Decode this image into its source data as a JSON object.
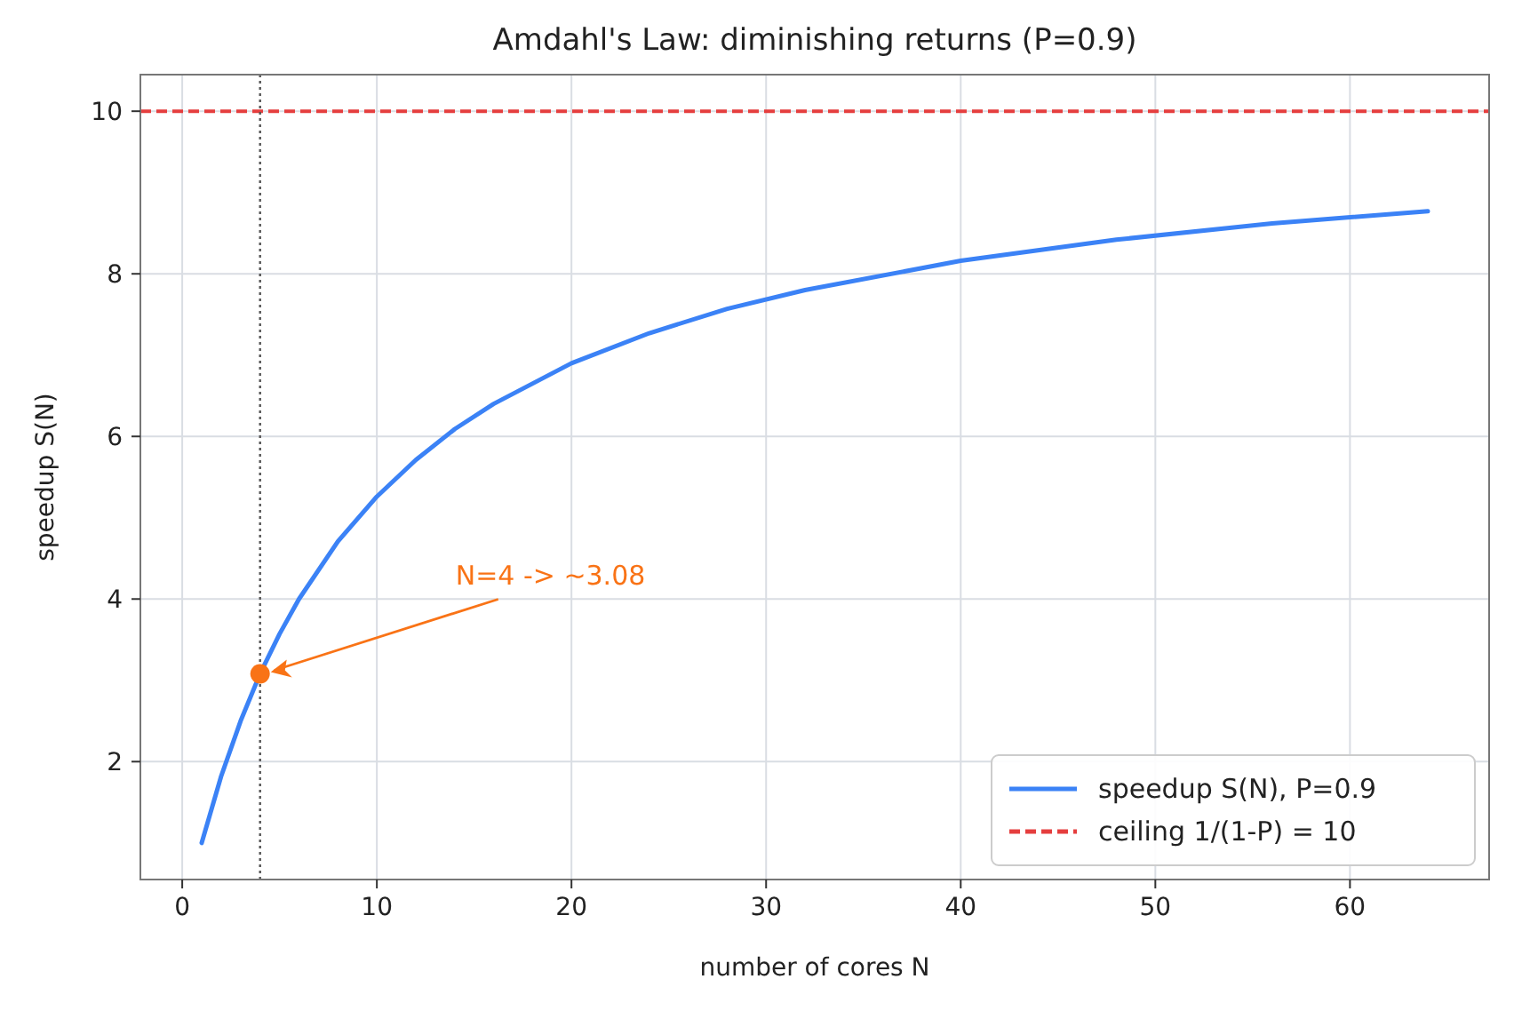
{
  "chart_data": {
    "type": "line",
    "title": "Amdahl's Law: diminishing returns (P=0.9)",
    "xlabel": "number of cores  N",
    "ylabel": "speedup  S(N)",
    "series": [
      {
        "name": "speedup S(N), P=0.9",
        "color": "#3b82f6",
        "x": [
          1,
          2,
          3,
          4,
          5,
          6,
          8,
          10,
          12,
          14,
          16,
          20,
          24,
          28,
          32,
          40,
          48,
          56,
          64
        ],
        "values": [
          1,
          1.82,
          2.5,
          3.08,
          3.57,
          4,
          4.71,
          5.26,
          5.71,
          6.09,
          6.4,
          6.9,
          7.27,
          7.57,
          7.8,
          8.16,
          8.42,
          8.62,
          8.77
        ]
      },
      {
        "type": "scatter",
        "color": "#f97316",
        "x": [
          4
        ],
        "values": [
          3.08
        ],
        "marker": "circle"
      }
    ],
    "ref_lines": [
      {
        "axis": "y",
        "value": 10,
        "label": "ceiling 1/(1-P) = 10",
        "color": "#e53e3e",
        "line_style": "dashed"
      },
      {
        "axis": "x",
        "value": 4,
        "color": "#555555",
        "line_style": "dotted"
      }
    ],
    "annotations": [
      {
        "text": "N=4 -> ~3.08",
        "x": 4,
        "y": 3.08
      }
    ],
    "xlim": [
      -2.15,
      67.15
    ],
    "ylim": [
      0.55,
      10.45
    ],
    "xticks": [
      0,
      10,
      20,
      30,
      40,
      50,
      60
    ],
    "yticks": [
      2,
      4,
      6,
      8,
      10
    ],
    "grid": true,
    "legend": "bottom right",
    "line_style": "solid"
  }
}
